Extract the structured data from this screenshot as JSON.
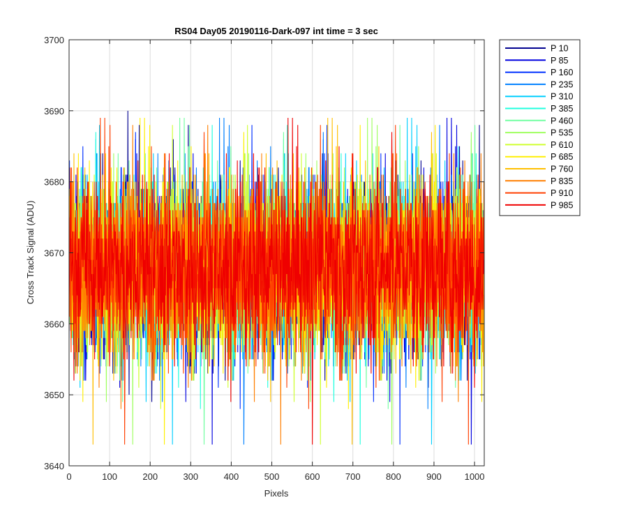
{
  "chart_data": {
    "type": "line",
    "title": "RS04 Day05 20190116-Dark-097 int time = 3 sec",
    "xlabel": "Pixels",
    "ylabel": "Cross Track Signal (ADU)",
    "xlim": [
      0,
      1024
    ],
    "ylim": [
      3640,
      3700
    ],
    "xticks": [
      0,
      100,
      200,
      300,
      400,
      500,
      600,
      700,
      800,
      900,
      1000
    ],
    "yticks": [
      3640,
      3650,
      3660,
      3670,
      3680,
      3690,
      3700
    ],
    "grid": true,
    "legend_position": "outside-top-right",
    "n_points_per_series": 1024,
    "series_summary": {
      "approx_mean": 3668,
      "approx_min": 3640,
      "approx_max": 3697
    },
    "series": [
      {
        "name": "P 10",
        "color": "#00008f"
      },
      {
        "name": "P 85",
        "color": "#0000df"
      },
      {
        "name": "P 160",
        "color": "#0030ff"
      },
      {
        "name": "P 235",
        "color": "#0080ff"
      },
      {
        "name": "P 310",
        "color": "#00cfff"
      },
      {
        "name": "P 385",
        "color": "#20ffdf"
      },
      {
        "name": "P 460",
        "color": "#70ffa0"
      },
      {
        "name": "P 535",
        "color": "#9fff60"
      },
      {
        "name": "P 610",
        "color": "#cfff30"
      },
      {
        "name": "P 685",
        "color": "#ffef00"
      },
      {
        "name": "P 760",
        "color": "#ffbf00"
      },
      {
        "name": "P 835",
        "color": "#ff7f00"
      },
      {
        "name": "P 910",
        "color": "#ff3f00"
      },
      {
        "name": "P 985",
        "color": "#ef0000"
      }
    ]
  }
}
